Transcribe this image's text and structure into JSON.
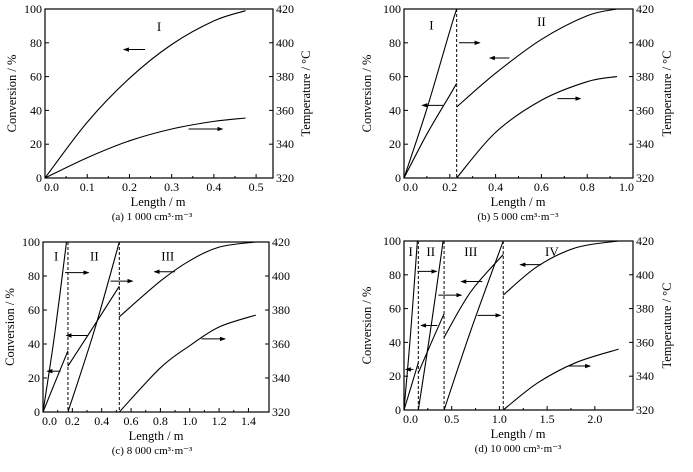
{
  "chart_data": [
    {
      "type": "line",
      "caption": "(a) 1 000 cm³·m⁻³",
      "xlabel": "Length / m",
      "ylabel": "Conversion / %",
      "y2label": "Temperature / °C",
      "xlim": [
        0,
        0.54
      ],
      "ylim": [
        0,
        100
      ],
      "y2lim": [
        320,
        420
      ],
      "xticks": [
        0.0,
        0.1,
        0.2,
        0.3,
        0.4,
        0.5
      ],
      "xtick_labels": [
        "0.0",
        "0.1",
        "0.2",
        "0.3",
        "0.4",
        "0.5"
      ],
      "yticks": [
        0,
        20,
        40,
        60,
        80,
        100
      ],
      "y2ticks": [
        320,
        340,
        360,
        380,
        400,
        420
      ],
      "stage_boundaries": [],
      "regions": [
        {
          "label": "I",
          "x": 0.27,
          "y": 87
        }
      ],
      "series": [
        {
          "name": "Conversion I",
          "axis": "left",
          "x": [
            0,
            0.1,
            0.2,
            0.3,
            0.4,
            0.475
          ],
          "y": [
            0,
            33,
            59,
            79,
            93,
            99
          ]
        },
        {
          "name": "Temperature I",
          "axis": "right",
          "x": [
            0,
            0.1,
            0.2,
            0.3,
            0.4,
            0.475
          ],
          "y": [
            320,
            332,
            342,
            349,
            353.5,
            355.5
          ]
        }
      ],
      "arrows": [
        {
          "dir": "left",
          "x1": 0.187,
          "x2": 0.237,
          "y": 76
        },
        {
          "dir": "right",
          "x1": 0.34,
          "x2": 0.42,
          "y": 29
        }
      ]
    },
    {
      "type": "line",
      "caption": "(b) 5 000 cm³·m⁻³",
      "xlabel": "Length / m",
      "ylabel": "Conversion / %",
      "y2label": "Temperature / °C",
      "xlim": [
        0,
        1.0
      ],
      "ylim": [
        0,
        100
      ],
      "y2lim": [
        320,
        420
      ],
      "xticks": [
        0.0,
        0.2,
        0.4,
        0.6,
        0.8,
        1.0
      ],
      "xtick_labels": [
        "0.0",
        "0.2",
        "0.4",
        "0.6",
        "0.8",
        "1.0"
      ],
      "yticks": [
        0,
        20,
        40,
        60,
        80,
        100
      ],
      "y2ticks": [
        320,
        340,
        360,
        380,
        400,
        420
      ],
      "stage_boundaries": [
        0.23
      ],
      "regions": [
        {
          "label": "I",
          "x": 0.12,
          "y": 88
        },
        {
          "label": "II",
          "x": 0.6,
          "y": 90
        }
      ],
      "series": [
        {
          "name": "Conversion I",
          "axis": "left",
          "x": [
            0,
            0.1,
            0.2,
            0.23
          ],
          "y": [
            0,
            26,
            49,
            56
          ]
        },
        {
          "name": "Temperature I",
          "axis": "right",
          "x": [
            0,
            0.1,
            0.2,
            0.23
          ],
          "y": [
            320,
            361,
            407,
            420
          ]
        },
        {
          "name": "Conversion II",
          "axis": "left",
          "x": [
            0.23,
            0.4,
            0.6,
            0.8,
            0.93
          ],
          "y": [
            42,
            62,
            82,
            96,
            100
          ]
        },
        {
          "name": "Temperature II",
          "axis": "right",
          "x": [
            0.23,
            0.4,
            0.6,
            0.8,
            0.93
          ],
          "y": [
            320,
            347,
            366,
            377,
            380
          ]
        }
      ],
      "arrows": [
        {
          "dir": "right",
          "x1": 0.24,
          "x2": 0.33,
          "y": 80
        },
        {
          "dir": "left",
          "x1": 0.375,
          "x2": 0.46,
          "y": 71
        },
        {
          "dir": "left",
          "x1": 0.08,
          "x2": 0.17,
          "y": 43
        },
        {
          "dir": "right",
          "x1": 0.67,
          "x2": 0.77,
          "y": 47
        }
      ]
    },
    {
      "type": "line",
      "caption": "(c) 8 000 cm³·m⁻³",
      "xlabel": "Length / m",
      "ylabel": "Conversion / %",
      "y2label": "",
      "xlim": [
        0,
        1.54
      ],
      "ylim": [
        0,
        100
      ],
      "y2lim": [
        320,
        420
      ],
      "xticks": [
        0.0,
        0.2,
        0.4,
        0.6,
        0.8,
        1.0,
        1.2,
        1.4
      ],
      "xtick_labels": [
        "0.0",
        "0.2",
        "0.4",
        "0.6",
        "0.8",
        "1.0",
        "1.2",
        "1.4"
      ],
      "yticks": [
        0,
        20,
        40,
        60,
        80,
        100
      ],
      "y2ticks": [
        320,
        340,
        360,
        380,
        400,
        420
      ],
      "stage_boundaries": [
        0.17,
        0.52
      ],
      "regions": [
        {
          "label": "I",
          "x": 0.09,
          "y": 89
        },
        {
          "label": "II",
          "x": 0.35,
          "y": 89
        },
        {
          "label": "III",
          "x": 0.85,
          "y": 89
        }
      ],
      "series": [
        {
          "name": "Conversion I",
          "axis": "left",
          "x": [
            0,
            0.08,
            0.17
          ],
          "y": [
            0,
            17,
            36
          ]
        },
        {
          "name": "Temperature I",
          "axis": "right",
          "x": [
            0,
            0.08,
            0.16
          ],
          "y": [
            320,
            366,
            420
          ]
        },
        {
          "name": "Conversion II",
          "axis": "left",
          "x": [
            0.17,
            0.35,
            0.52
          ],
          "y": [
            27,
            51,
            74
          ]
        },
        {
          "name": "Temperature II",
          "axis": "right",
          "x": [
            0.17,
            0.35,
            0.52
          ],
          "y": [
            320,
            368,
            420
          ]
        },
        {
          "name": "Conversion III",
          "axis": "left",
          "x": [
            0.52,
            0.8,
            1.0,
            1.2,
            1.45
          ],
          "y": [
            56,
            77,
            89,
            97,
            100
          ]
        },
        {
          "name": "Temperature III",
          "axis": "right",
          "x": [
            0.52,
            0.8,
            1.0,
            1.2,
            1.45
          ],
          "y": [
            320,
            346,
            359,
            370,
            377
          ]
        }
      ],
      "arrows": [
        {
          "dir": "right",
          "x1": 0.15,
          "x2": 0.31,
          "y": 82
        },
        {
          "dir": "right",
          "x1": 0.46,
          "x2": 0.61,
          "y": 77
        },
        {
          "dir": "left",
          "x1": 0.76,
          "x2": 0.9,
          "y": 82.5
        },
        {
          "dir": "left",
          "x1": 0.16,
          "x2": 0.31,
          "y": 45
        },
        {
          "dir": "left",
          "x1": 0.03,
          "x2": 0.12,
          "y": 24
        },
        {
          "dir": "right",
          "x1": 1.08,
          "x2": 1.24,
          "y": 43
        }
      ]
    },
    {
      "type": "line",
      "caption": "(d) 10 000 cm³·m⁻³",
      "xlabel": "Length / m",
      "ylabel": "Conversion / %",
      "y2label": "Temperature / °C",
      "xlim": [
        0,
        2.4
      ],
      "ylim": [
        0,
        100
      ],
      "y2lim": [
        320,
        420
      ],
      "xticks": [
        0.0,
        0.5,
        1.0,
        1.5,
        2.0
      ],
      "xtick_labels": [
        "0.0",
        "0.5",
        "1.0",
        "1.5",
        "2.0"
      ],
      "yticks": [
        0,
        20,
        40,
        60,
        80,
        100
      ],
      "y2ticks": [
        320,
        340,
        360,
        380,
        400,
        420
      ],
      "stage_boundaries": [
        0.15,
        0.42,
        1.04
      ],
      "regions": [
        {
          "label": "I",
          "x": 0.07,
          "y": 91
        },
        {
          "label": "II",
          "x": 0.28,
          "y": 91
        },
        {
          "label": "III",
          "x": 0.7,
          "y": 91
        },
        {
          "label": "IV",
          "x": 1.55,
          "y": 91
        }
      ],
      "series": [
        {
          "name": "Conversion I",
          "axis": "left",
          "x": [
            0,
            0.07,
            0.15
          ],
          "y": [
            0,
            13,
            28
          ]
        },
        {
          "name": "Temperature I",
          "axis": "right",
          "x": [
            0,
            0.07,
            0.14
          ],
          "y": [
            320,
            366,
            420
          ]
        },
        {
          "name": "Conversion II",
          "axis": "left",
          "x": [
            0.15,
            0.28,
            0.42
          ],
          "y": [
            22,
            39,
            57
          ]
        },
        {
          "name": "Temperature II",
          "axis": "right",
          "x": [
            0.15,
            0.28,
            0.41
          ],
          "y": [
            320,
            368,
            420
          ]
        },
        {
          "name": "Conversion III",
          "axis": "left",
          "x": [
            0.42,
            0.7,
            1.04
          ],
          "y": [
            43,
            70,
            92
          ]
        },
        {
          "name": "Temperature III",
          "axis": "right",
          "x": [
            0.42,
            0.7,
            1.04
          ],
          "y": [
            320,
            367,
            420
          ]
        },
        {
          "name": "Conversion IV",
          "axis": "left",
          "x": [
            1.04,
            1.4,
            1.8,
            2.25
          ],
          "y": [
            68,
            85,
            96,
            100
          ]
        },
        {
          "name": "Temperature IV",
          "axis": "right",
          "x": [
            1.04,
            1.4,
            1.8,
            2.25
          ],
          "y": [
            320,
            336,
            348,
            356
          ]
        }
      ],
      "arrows": [
        {
          "dir": "right",
          "x1": 0.14,
          "x2": 0.34,
          "y": 82
        },
        {
          "dir": "right",
          "x1": 0.36,
          "x2": 0.6,
          "y": 68
        },
        {
          "dir": "left",
          "x1": 0.6,
          "x2": 0.82,
          "y": 76
        },
        {
          "dir": "left",
          "x1": 0.18,
          "x2": 0.35,
          "y": 50
        },
        {
          "dir": "left",
          "x1": 0.02,
          "x2": 0.1,
          "y": 24
        },
        {
          "dir": "right",
          "x1": 0.77,
          "x2": 1.01,
          "y": 56
        },
        {
          "dir": "left",
          "x1": 1.22,
          "x2": 1.44,
          "y": 86
        },
        {
          "dir": "right",
          "x1": 1.72,
          "x2": 1.95,
          "y": 26
        }
      ]
    }
  ]
}
